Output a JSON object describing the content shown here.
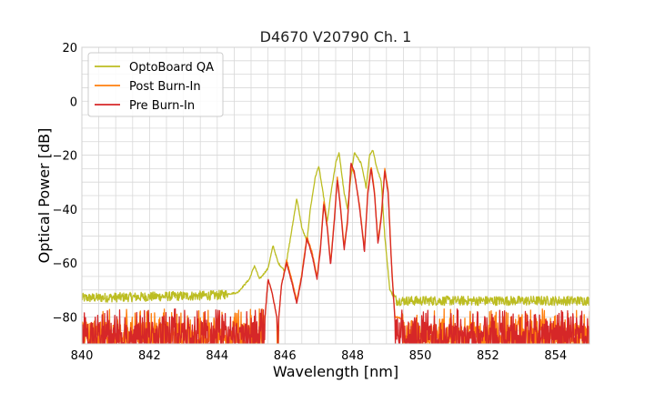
{
  "chart_data": {
    "type": "line",
    "title": "D4670 V20790 Ch. 1",
    "xlabel": "Wavelength [nm]",
    "ylabel": "Optical Power [dB]",
    "xlim": [
      840,
      855
    ],
    "ylim": [
      -90,
      20
    ],
    "xticks": [
      840,
      842,
      844,
      846,
      848,
      850,
      852,
      854
    ],
    "yticks": [
      -80,
      -60,
      -40,
      -20,
      0,
      20
    ],
    "grid": true,
    "legend_position": "top-left",
    "series": [
      {
        "name": "OptoBoard QA",
        "color": "#bcbd22",
        "noise_floor": -73,
        "points": [
          [
            840,
            -73
          ],
          [
            844,
            -72
          ],
          [
            844.6,
            -71
          ],
          [
            844.95,
            -66
          ],
          [
            845.1,
            -61
          ],
          [
            845.25,
            -66
          ],
          [
            845.5,
            -62
          ],
          [
            845.65,
            -53.5
          ],
          [
            845.8,
            -60
          ],
          [
            846.0,
            -63
          ],
          [
            846.2,
            -48
          ],
          [
            846.35,
            -36
          ],
          [
            846.5,
            -47
          ],
          [
            846.65,
            -52
          ],
          [
            846.75,
            -40
          ],
          [
            846.9,
            -28
          ],
          [
            847.0,
            -24
          ],
          [
            847.15,
            -36
          ],
          [
            847.25,
            -45
          ],
          [
            847.35,
            -35
          ],
          [
            847.5,
            -23
          ],
          [
            847.6,
            -19
          ],
          [
            847.75,
            -34
          ],
          [
            847.85,
            -40
          ],
          [
            847.95,
            -28
          ],
          [
            848.05,
            -19
          ],
          [
            848.25,
            -23
          ],
          [
            848.4,
            -32
          ],
          [
            848.5,
            -20
          ],
          [
            848.6,
            -18
          ],
          [
            848.7,
            -24
          ],
          [
            848.85,
            -30
          ],
          [
            848.95,
            -50
          ],
          [
            849.1,
            -70
          ],
          [
            849.3,
            -74
          ],
          [
            850,
            -74
          ],
          [
            855,
            -74
          ]
        ]
      },
      {
        "name": "Post Burn-In",
        "color": "#ff7f0e",
        "noise_floor": -82,
        "points": [
          [
            840,
            -82
          ],
          [
            845.4,
            -82
          ],
          [
            845.5,
            -66
          ],
          [
            845.6,
            -70
          ],
          [
            845.7,
            -76
          ],
          [
            845.8,
            -83
          ],
          [
            845.9,
            -68
          ],
          [
            846.05,
            -59
          ],
          [
            846.2,
            -66
          ],
          [
            846.35,
            -74
          ],
          [
            846.5,
            -64
          ],
          [
            846.65,
            -50
          ],
          [
            846.8,
            -56
          ],
          [
            846.95,
            -65
          ],
          [
            847.05,
            -54
          ],
          [
            847.15,
            -37
          ],
          [
            847.25,
            -46
          ],
          [
            847.35,
            -60
          ],
          [
            847.45,
            -45
          ],
          [
            847.55,
            -28
          ],
          [
            847.65,
            -40
          ],
          [
            847.75,
            -54
          ],
          [
            847.85,
            -44
          ],
          [
            847.95,
            -24
          ],
          [
            848.05,
            -27
          ],
          [
            848.2,
            -38
          ],
          [
            848.35,
            -55
          ],
          [
            848.45,
            -33
          ],
          [
            848.55,
            -24
          ],
          [
            848.65,
            -34
          ],
          [
            848.75,
            -52
          ],
          [
            848.85,
            -42
          ],
          [
            848.95,
            -25
          ],
          [
            849.05,
            -33
          ],
          [
            849.15,
            -60
          ],
          [
            849.25,
            -80
          ],
          [
            850,
            -82
          ],
          [
            855,
            -82
          ]
        ]
      },
      {
        "name": "Pre Burn-In",
        "color": "#d62728",
        "noise_floor": -82,
        "points": [
          [
            840,
            -82
          ],
          [
            845.4,
            -82
          ],
          [
            845.5,
            -66
          ],
          [
            845.6,
            -70
          ],
          [
            845.7,
            -76
          ],
          [
            845.8,
            -83
          ],
          [
            845.9,
            -68
          ],
          [
            846.05,
            -60
          ],
          [
            846.2,
            -67
          ],
          [
            846.35,
            -75
          ],
          [
            846.5,
            -65
          ],
          [
            846.65,
            -51
          ],
          [
            846.8,
            -57
          ],
          [
            846.95,
            -66
          ],
          [
            847.05,
            -55
          ],
          [
            847.15,
            -38
          ],
          [
            847.25,
            -47
          ],
          [
            847.35,
            -61
          ],
          [
            847.45,
            -46
          ],
          [
            847.55,
            -29
          ],
          [
            847.65,
            -41
          ],
          [
            847.75,
            -55
          ],
          [
            847.85,
            -45
          ],
          [
            847.95,
            -23
          ],
          [
            848.05,
            -26
          ],
          [
            848.2,
            -39
          ],
          [
            848.35,
            -56
          ],
          [
            848.45,
            -34
          ],
          [
            848.55,
            -25
          ],
          [
            848.65,
            -35
          ],
          [
            848.75,
            -53
          ],
          [
            848.85,
            -43
          ],
          [
            848.95,
            -26
          ],
          [
            849.05,
            -34
          ],
          [
            849.15,
            -61
          ],
          [
            849.25,
            -81
          ],
          [
            850,
            -82
          ],
          [
            855,
            -82
          ]
        ]
      }
    ]
  }
}
